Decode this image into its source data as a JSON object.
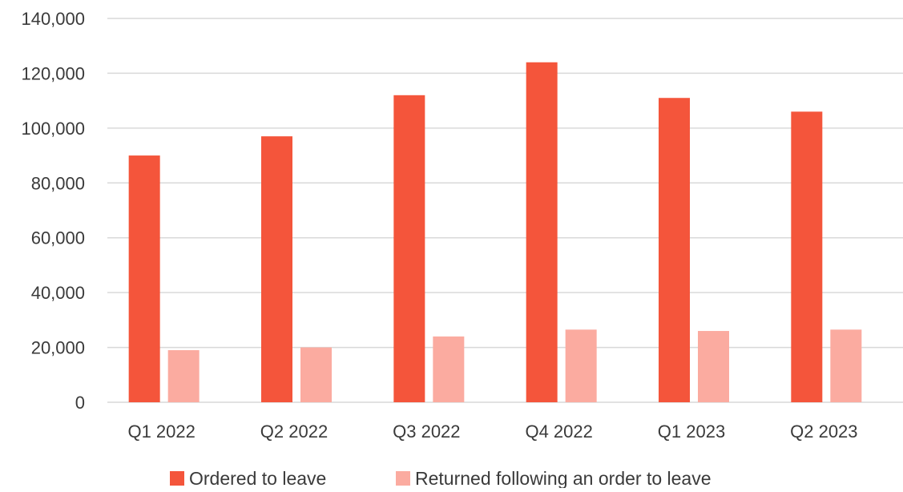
{
  "chart_data": {
    "type": "bar",
    "title": "",
    "xlabel": "",
    "ylabel": "",
    "categories": [
      "Q1 2022",
      "Q2 2022",
      "Q3 2022",
      "Q4 2022",
      "Q1 2023",
      "Q2 2023"
    ],
    "series": [
      {
        "name": "Ordered to leave",
        "color": "#f4553b",
        "values": [
          90000,
          97000,
          112000,
          124000,
          111000,
          106000
        ]
      },
      {
        "name": "Returned following an order to leave",
        "color": "#fbaba0",
        "values": [
          19000,
          20000,
          24000,
          26500,
          26000,
          26500
        ]
      }
    ],
    "ylim": [
      0,
      140000
    ],
    "yticks": [
      "0",
      "20,000",
      "40,000",
      "60,000",
      "80,000",
      "100,000",
      "120,000",
      "140,000"
    ],
    "ytick_values": [
      0,
      20000,
      40000,
      60000,
      80000,
      100000,
      120000,
      140000
    ],
    "grid": true,
    "legend_position": "bottom"
  }
}
